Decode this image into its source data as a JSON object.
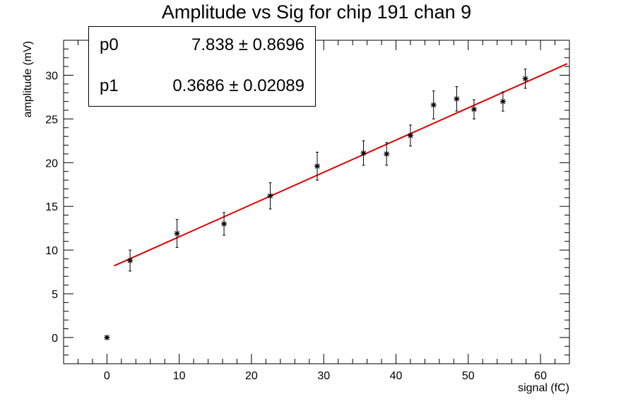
{
  "chart_data": {
    "type": "scatter",
    "title": "Amplitude vs Sig for chip 191 chan 9",
    "xlabel": "signal (fC)",
    "ylabel": "amplitude (mV)",
    "xlim": [
      -6,
      64
    ],
    "ylim": [
      -3,
      34
    ],
    "xticks": [
      0,
      10,
      20,
      30,
      40,
      50,
      60
    ],
    "yticks": [
      0,
      5,
      10,
      15,
      20,
      25,
      30
    ],
    "grid": false,
    "series": [
      {
        "type": "scatter-errorbars",
        "color": "#000000",
        "x": [
          0.0,
          3.2,
          9.7,
          16.2,
          22.6,
          29.1,
          35.5,
          38.7,
          42.0,
          45.2,
          48.4,
          50.8,
          54.8,
          57.9
        ],
        "y": [
          0.0,
          8.8,
          11.9,
          13.0,
          16.2,
          19.6,
          21.1,
          21.0,
          23.1,
          26.6,
          27.3,
          26.1,
          27.0,
          29.6
        ],
        "yerr": [
          0.0,
          1.2,
          1.6,
          1.3,
          1.5,
          1.6,
          1.4,
          1.3,
          1.2,
          1.6,
          1.4,
          1.1,
          1.1,
          1.1
        ]
      },
      {
        "type": "fit-line",
        "color": "#dd0000",
        "x": [
          1.0,
          63.7
        ],
        "y": [
          8.207,
          31.317
        ]
      }
    ],
    "fit": {
      "rows": [
        {
          "name": "p0",
          "value": "7.838",
          "error": "0.8696"
        },
        {
          "name": "p1",
          "value": "0.3686",
          "error": "0.02089"
        }
      ]
    }
  }
}
